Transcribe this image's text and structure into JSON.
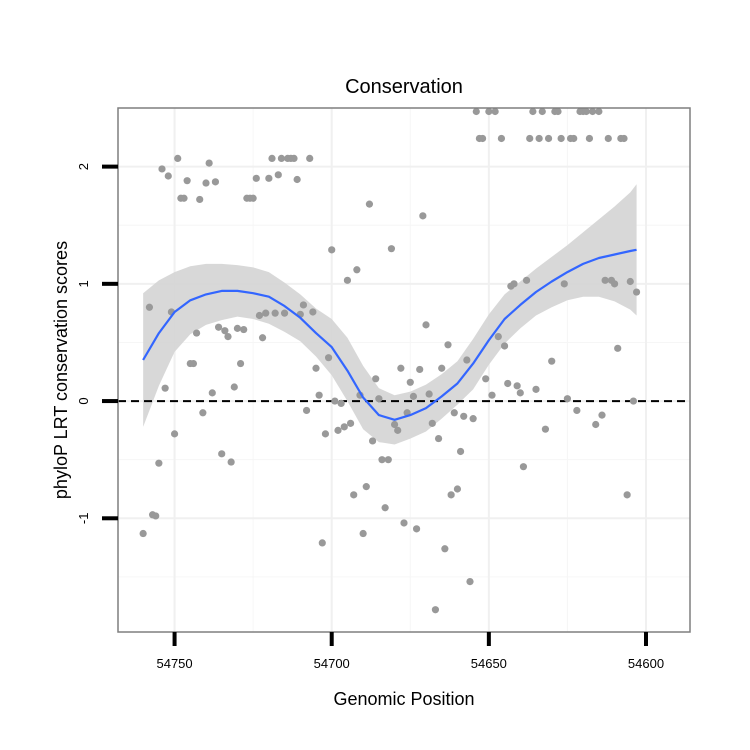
{
  "chart_data": {
    "type": "scatter",
    "title": "Conservation",
    "xlabel": "Genomic Position",
    "ylabel": "phyloP LRT conservation scores",
    "x_reversed": true,
    "xlim": [
      54768,
      54586
    ],
    "ylim": [
      -1.97,
      2.5
    ],
    "x_ticks": [
      54750,
      54700,
      54650,
      54600
    ],
    "x_tick_labels": [
      "54750",
      "54700",
      "54650",
      "54600"
    ],
    "y_ticks": [
      -1,
      0,
      1,
      2
    ],
    "y_tick_labels": [
      "-1",
      "0",
      "1",
      "2"
    ],
    "reference_line_y": 0,
    "grid": true,
    "point_color": "#999999",
    "smooth_color": "#3366ff",
    "band_color": "#d4d4d4",
    "points": [
      [
        54760,
        -1.13
      ],
      [
        54758,
        0.8
      ],
      [
        54757,
        -0.97
      ],
      [
        54756,
        -0.98
      ],
      [
        54755,
        -0.53
      ],
      [
        54754,
        1.98
      ],
      [
        54753,
        0.11
      ],
      [
        54752,
        1.92
      ],
      [
        54751,
        0.76
      ],
      [
        54750,
        -0.28
      ],
      [
        54749,
        2.07
      ],
      [
        54748,
        1.73
      ],
      [
        54747,
        1.73
      ],
      [
        54746,
        1.88
      ],
      [
        54745,
        0.32
      ],
      [
        54744,
        0.32
      ],
      [
        54743,
        0.58
      ],
      [
        54742,
        1.72
      ],
      [
        54741,
        -0.1
      ],
      [
        54740,
        1.86
      ],
      [
        54739,
        2.03
      ],
      [
        54738,
        0.07
      ],
      [
        54737,
        1.87
      ],
      [
        54736,
        0.63
      ],
      [
        54735,
        -0.45
      ],
      [
        54734,
        0.6
      ],
      [
        54733,
        0.55
      ],
      [
        54732,
        -0.52
      ],
      [
        54731,
        0.12
      ],
      [
        54730,
        0.62
      ],
      [
        54729,
        0.32
      ],
      [
        54728,
        0.61
      ],
      [
        54727,
        1.73
      ],
      [
        54726,
        1.73
      ],
      [
        54725,
        1.73
      ],
      [
        54724,
        1.9
      ],
      [
        54723,
        0.73
      ],
      [
        54722,
        0.54
      ],
      [
        54721,
        0.75
      ],
      [
        54720,
        1.9
      ],
      [
        54719,
        2.07
      ],
      [
        54718,
        0.75
      ],
      [
        54717,
        1.93
      ],
      [
        54716,
        2.07
      ],
      [
        54715,
        0.75
      ],
      [
        54714,
        2.07
      ],
      [
        54713,
        2.07
      ],
      [
        54712,
        2.07
      ],
      [
        54711,
        1.89
      ],
      [
        54710,
        0.74
      ],
      [
        54709,
        0.82
      ],
      [
        54708,
        -0.08
      ],
      [
        54707,
        2.07
      ],
      [
        54706,
        0.76
      ],
      [
        54705,
        0.28
      ],
      [
        54704,
        0.05
      ],
      [
        54703,
        -1.21
      ],
      [
        54702,
        -0.28
      ],
      [
        54701,
        0.37
      ],
      [
        54700,
        1.29
      ],
      [
        54699,
        0.0
      ],
      [
        54698,
        -0.25
      ],
      [
        54697,
        -0.02
      ],
      [
        54696,
        -0.22
      ],
      [
        54695,
        1.03
      ],
      [
        54694,
        -0.19
      ],
      [
        54693,
        -0.8
      ],
      [
        54692,
        1.12
      ],
      [
        54691,
        0.05
      ],
      [
        54690,
        -1.13
      ],
      [
        54689,
        -0.73
      ],
      [
        54688,
        1.68
      ],
      [
        54687,
        -0.34
      ],
      [
        54686,
        0.19
      ],
      [
        54685,
        0.02
      ],
      [
        54684,
        -0.5
      ],
      [
        54683,
        -0.91
      ],
      [
        54682,
        -0.5
      ],
      [
        54681,
        1.3
      ],
      [
        54680,
        -0.2
      ],
      [
        54679,
        -0.25
      ],
      [
        54678,
        0.28
      ],
      [
        54677,
        -1.04
      ],
      [
        54676,
        -0.1
      ],
      [
        54675,
        0.16
      ],
      [
        54674,
        0.04
      ],
      [
        54673,
        -1.09
      ],
      [
        54672,
        0.27
      ],
      [
        54671,
        1.58
      ],
      [
        54670,
        0.65
      ],
      [
        54669,
        0.06
      ],
      [
        54668,
        -0.19
      ],
      [
        54667,
        -1.78
      ],
      [
        54666,
        -0.32
      ],
      [
        54665,
        0.28
      ],
      [
        54664,
        -1.26
      ],
      [
        54663,
        0.48
      ],
      [
        54662,
        -0.8
      ],
      [
        54661,
        -0.1
      ],
      [
        54660,
        -0.75
      ],
      [
        54659,
        -0.43
      ],
      [
        54658,
        -0.13
      ],
      [
        54657,
        0.35
      ],
      [
        54656,
        -1.54
      ],
      [
        54655,
        -0.15
      ],
      [
        54654,
        2.47
      ],
      [
        54653,
        2.24
      ],
      [
        54652,
        2.24
      ],
      [
        54651,
        0.19
      ],
      [
        54650,
        2.47
      ],
      [
        54649,
        0.05
      ],
      [
        54648,
        2.47
      ],
      [
        54647,
        0.55
      ],
      [
        54646,
        2.24
      ],
      [
        54645,
        0.47
      ],
      [
        54644,
        0.15
      ],
      [
        54643,
        0.98
      ],
      [
        54642,
        1.0
      ],
      [
        54641,
        0.13
      ],
      [
        54640,
        0.07
      ],
      [
        54639,
        -0.56
      ],
      [
        54638,
        1.03
      ],
      [
        54637,
        2.24
      ],
      [
        54636,
        2.47
      ],
      [
        54635,
        0.1
      ],
      [
        54634,
        2.24
      ],
      [
        54633,
        2.47
      ],
      [
        54632,
        -0.24
      ],
      [
        54631,
        2.24
      ],
      [
        54630,
        0.34
      ],
      [
        54629,
        2.47
      ],
      [
        54628,
        2.47
      ],
      [
        54627,
        2.24
      ],
      [
        54626,
        1.0
      ],
      [
        54625,
        0.02
      ],
      [
        54624,
        2.24
      ],
      [
        54623,
        2.24
      ],
      [
        54622,
        -0.08
      ],
      [
        54621,
        2.47
      ],
      [
        54620,
        2.47
      ],
      [
        54619,
        2.47
      ],
      [
        54618,
        2.24
      ],
      [
        54617,
        2.47
      ],
      [
        54616,
        -0.2
      ],
      [
        54615,
        2.47
      ],
      [
        54614,
        -0.12
      ],
      [
        54613,
        1.03
      ],
      [
        54612,
        2.24
      ],
      [
        54611,
        1.03
      ],
      [
        54610,
        1.0
      ],
      [
        54609,
        0.45
      ],
      [
        54608,
        2.24
      ],
      [
        54607,
        2.24
      ],
      [
        54606,
        -0.8
      ],
      [
        54605,
        1.02
      ],
      [
        54604,
        0.0
      ],
      [
        54603,
        0.93
      ]
    ],
    "smooth_fit": [
      [
        54760,
        0.35
      ],
      [
        54755,
        0.58
      ],
      [
        54750,
        0.76
      ],
      [
        54745,
        0.86
      ],
      [
        54740,
        0.91
      ],
      [
        54735,
        0.94
      ],
      [
        54730,
        0.94
      ],
      [
        54725,
        0.92
      ],
      [
        54720,
        0.89
      ],
      [
        54715,
        0.81
      ],
      [
        54710,
        0.71
      ],
      [
        54705,
        0.58
      ],
      [
        54700,
        0.46
      ],
      [
        54695,
        0.26
      ],
      [
        54690,
        0.03
      ],
      [
        54685,
        -0.12
      ],
      [
        54680,
        -0.16
      ],
      [
        54675,
        -0.12
      ],
      [
        54670,
        -0.06
      ],
      [
        54665,
        0.04
      ],
      [
        54660,
        0.15
      ],
      [
        54655,
        0.32
      ],
      [
        54650,
        0.52
      ],
      [
        54645,
        0.7
      ],
      [
        54640,
        0.82
      ],
      [
        54635,
        0.93
      ],
      [
        54630,
        1.02
      ],
      [
        54625,
        1.1
      ],
      [
        54620,
        1.17
      ],
      [
        54615,
        1.22
      ],
      [
        54610,
        1.25
      ],
      [
        54605,
        1.28
      ],
      [
        54603,
        1.29
      ]
    ],
    "ci_upper": [
      [
        54760,
        0.92
      ],
      [
        54755,
        1.03
      ],
      [
        54750,
        1.1
      ],
      [
        54745,
        1.15
      ],
      [
        54740,
        1.17
      ],
      [
        54735,
        1.17
      ],
      [
        54730,
        1.16
      ],
      [
        54725,
        1.14
      ],
      [
        54720,
        1.1
      ],
      [
        54715,
        1.01
      ],
      [
        54710,
        0.91
      ],
      [
        54705,
        0.79
      ],
      [
        54700,
        0.7
      ],
      [
        54695,
        0.54
      ],
      [
        54690,
        0.3
      ],
      [
        54685,
        0.11
      ],
      [
        54680,
        0.05
      ],
      [
        54675,
        0.08
      ],
      [
        54670,
        0.14
      ],
      [
        54665,
        0.23
      ],
      [
        54660,
        0.34
      ],
      [
        54655,
        0.53
      ],
      [
        54650,
        0.74
      ],
      [
        54645,
        0.91
      ],
      [
        54640,
        1.02
      ],
      [
        54635,
        1.13
      ],
      [
        54630,
        1.23
      ],
      [
        54625,
        1.33
      ],
      [
        54620,
        1.44
      ],
      [
        54615,
        1.55
      ],
      [
        54610,
        1.66
      ],
      [
        54605,
        1.78
      ],
      [
        54603,
        1.85
      ]
    ],
    "ci_lower": [
      [
        54760,
        -0.22
      ],
      [
        54755,
        0.13
      ],
      [
        54750,
        0.42
      ],
      [
        54745,
        0.57
      ],
      [
        54740,
        0.65
      ],
      [
        54735,
        0.69
      ],
      [
        54730,
        0.72
      ],
      [
        54725,
        0.7
      ],
      [
        54720,
        0.66
      ],
      [
        54715,
        0.59
      ],
      [
        54710,
        0.51
      ],
      [
        54705,
        0.38
      ],
      [
        54700,
        0.22
      ],
      [
        54695,
        0.0
      ],
      [
        54690,
        -0.24
      ],
      [
        54685,
        -0.35
      ],
      [
        54680,
        -0.37
      ],
      [
        54675,
        -0.32
      ],
      [
        54670,
        -0.26
      ],
      [
        54665,
        -0.15
      ],
      [
        54660,
        -0.03
      ],
      [
        54655,
        0.1
      ],
      [
        54650,
        0.31
      ],
      [
        54645,
        0.49
      ],
      [
        54640,
        0.62
      ],
      [
        54635,
        0.73
      ],
      [
        54630,
        0.8
      ],
      [
        54625,
        0.86
      ],
      [
        54620,
        0.89
      ],
      [
        54615,
        0.89
      ],
      [
        54610,
        0.85
      ],
      [
        54605,
        0.78
      ],
      [
        54603,
        0.73
      ]
    ]
  }
}
